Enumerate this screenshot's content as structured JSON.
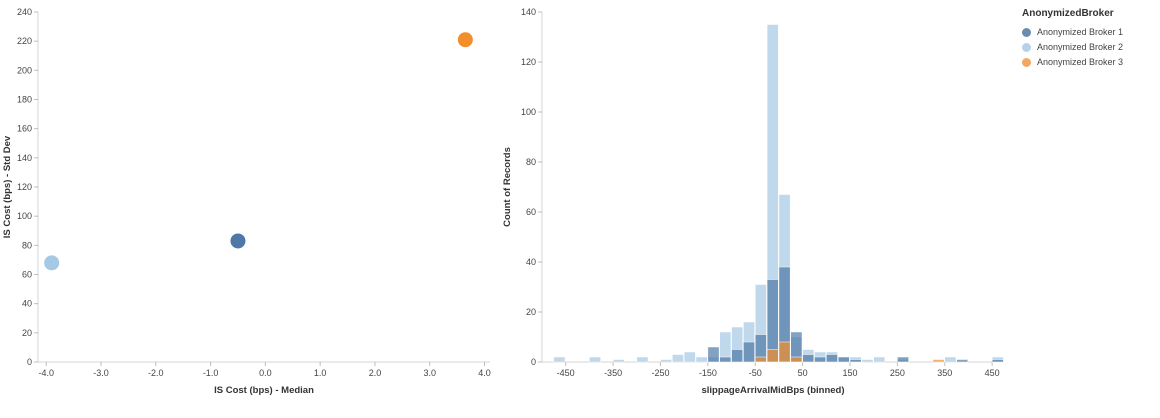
{
  "legend": {
    "title": "AnonymizedBroker",
    "items": [
      {
        "label": "Anonymized Broker 1",
        "color": "#6b8cad"
      },
      {
        "label": "Anonymized Broker 2",
        "color": "#b6d2e8"
      },
      {
        "label": "Anonymized Broker 3",
        "color": "#f2a860"
      }
    ]
  },
  "chart_data": [
    {
      "type": "scatter",
      "title": "",
      "xlabel": "IS Cost (bps) - Median",
      "ylabel": "IS Cost (bps) - Std Dev",
      "xlim": [
        -4.15,
        4.1
      ],
      "ylim": [
        0,
        240
      ],
      "x_ticks": [
        -4,
        -3,
        -2,
        -1,
        0,
        1,
        2,
        3,
        4
      ],
      "x_tick_labels": [
        "-4.0",
        "-3.0",
        "-2.0",
        "-1.0",
        "0.0",
        "1.0",
        "2.0",
        "3.0",
        "4.0"
      ],
      "y_ticks": [
        0,
        20,
        40,
        60,
        80,
        100,
        120,
        140,
        160,
        180,
        200,
        220,
        240
      ],
      "grid": false,
      "legend_position": "right",
      "series": [
        {
          "name": "Anonymized Broker 1",
          "color": "#4e79a7",
          "points": [
            {
              "x": -0.5,
              "y": 83
            }
          ]
        },
        {
          "name": "Anonymized Broker 2",
          "color": "#a5c8e4",
          "points": [
            {
              "x": -3.9,
              "y": 68
            }
          ]
        },
        {
          "name": "Anonymized Broker 3",
          "color": "#f28e2b",
          "points": [
            {
              "x": 3.65,
              "y": 221
            }
          ]
        }
      ]
    },
    {
      "type": "bar",
      "title": "",
      "xlabel": "slippageArrivalMidBps (binned)",
      "ylabel": "Count of Records",
      "xlim": [
        -500,
        475
      ],
      "ylim": [
        0,
        140
      ],
      "x_ticks": [
        -450,
        -350,
        -250,
        -150,
        -50,
        50,
        150,
        250,
        350,
        450
      ],
      "x_tick_labels": [
        "-450",
        "-350",
        "-250",
        "-150",
        "-50",
        "50",
        "150",
        "250",
        "350",
        "450"
      ],
      "y_ticks": [
        0,
        20,
        40,
        60,
        80,
        100,
        120,
        140
      ],
      "bin_width": 25,
      "grid": false,
      "bar_opacity": 0.7,
      "series": [
        {
          "name": "Anonymized Broker 2",
          "color": "#a5c8e4",
          "bars": [
            [
              -475,
              2
            ],
            [
              -400,
              2
            ],
            [
              -350,
              1
            ],
            [
              -300,
              2
            ],
            [
              -250,
              1
            ],
            [
              -225,
              3
            ],
            [
              -200,
              4
            ],
            [
              -175,
              2
            ],
            [
              -150,
              2
            ],
            [
              -125,
              12
            ],
            [
              -100,
              14
            ],
            [
              -75,
              16
            ],
            [
              -50,
              31
            ],
            [
              -25,
              135
            ],
            [
              0,
              67
            ],
            [
              25,
              10
            ],
            [
              50,
              5
            ],
            [
              75,
              4
            ],
            [
              100,
              4
            ],
            [
              125,
              2
            ],
            [
              150,
              2
            ],
            [
              175,
              1
            ],
            [
              200,
              2
            ],
            [
              250,
              1
            ],
            [
              350,
              2
            ],
            [
              450,
              2
            ]
          ]
        },
        {
          "name": "Anonymized Broker 1",
          "color": "#4e79a7",
          "bars": [
            [
              -150,
              6
            ],
            [
              -125,
              2
            ],
            [
              -100,
              5
            ],
            [
              -75,
              8
            ],
            [
              -50,
              11
            ],
            [
              -25,
              33
            ],
            [
              0,
              38
            ],
            [
              25,
              12
            ],
            [
              50,
              3
            ],
            [
              75,
              2
            ],
            [
              100,
              3
            ],
            [
              125,
              2
            ],
            [
              150,
              1
            ],
            [
              250,
              2
            ],
            [
              375,
              1
            ],
            [
              450,
              1
            ]
          ]
        },
        {
          "name": "Anonymized Broker 3",
          "color": "#f28e2b",
          "bars": [
            [
              -50,
              2
            ],
            [
              -25,
              5
            ],
            [
              0,
              8
            ],
            [
              25,
              2
            ],
            [
              325,
              1
            ]
          ]
        }
      ]
    }
  ]
}
